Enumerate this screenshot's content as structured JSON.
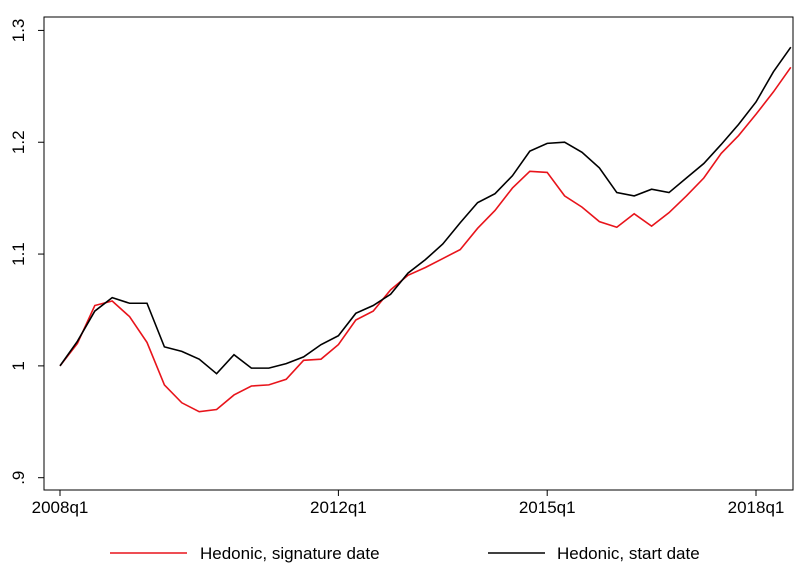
{
  "chart_data": {
    "type": "line",
    "categories": [
      "2008q1",
      null,
      null,
      null,
      null,
      null,
      null,
      null,
      null,
      null,
      null,
      null,
      null,
      null,
      null,
      null,
      "2012q1",
      null,
      null,
      null,
      null,
      null,
      null,
      null,
      null,
      null,
      null,
      null,
      "2015q1",
      null,
      null,
      null,
      null,
      null,
      null,
      null,
      null,
      null,
      null,
      null,
      "2018q1",
      null,
      null
    ],
    "series": [
      {
        "name": "Hedonic, signature date",
        "color": "#e8141b",
        "values": [
          1.0,
          1.02,
          1.054,
          1.058,
          1.044,
          1.021,
          0.983,
          0.967,
          0.959,
          0.961,
          0.974,
          0.982,
          0.983,
          0.988,
          1.005,
          1.006,
          1.019,
          1.041,
          1.049,
          1.068,
          1.081,
          1.088,
          1.096,
          1.104,
          1.123,
          1.139,
          1.159,
          1.174,
          1.173,
          1.152,
          1.142,
          1.129,
          1.124,
          1.136,
          1.125,
          1.137,
          1.152,
          1.168,
          1.19,
          1.206,
          1.225,
          1.245,
          1.267
        ]
      },
      {
        "name": "Hedonic, start date",
        "color": "#000000",
        "values": [
          1.0,
          1.022,
          1.049,
          1.061,
          1.056,
          1.056,
          1.017,
          1.013,
          1.006,
          0.993,
          1.01,
          0.998,
          0.998,
          1.002,
          1.008,
          1.019,
          1.027,
          1.047,
          1.054,
          1.064,
          1.083,
          1.095,
          1.109,
          1.128,
          1.146,
          1.154,
          1.17,
          1.192,
          1.199,
          1.2,
          1.191,
          1.177,
          1.155,
          1.152,
          1.158,
          1.155,
          1.168,
          1.181,
          1.198,
          1.216,
          1.236,
          1.263,
          1.285
        ]
      }
    ],
    "ylim": [
      0.889,
      1.312
    ],
    "yticks": [
      {
        "value": 0.9,
        "label": ".9"
      },
      1,
      1.1,
      1.2,
      1.3
    ],
    "grid": false
  }
}
